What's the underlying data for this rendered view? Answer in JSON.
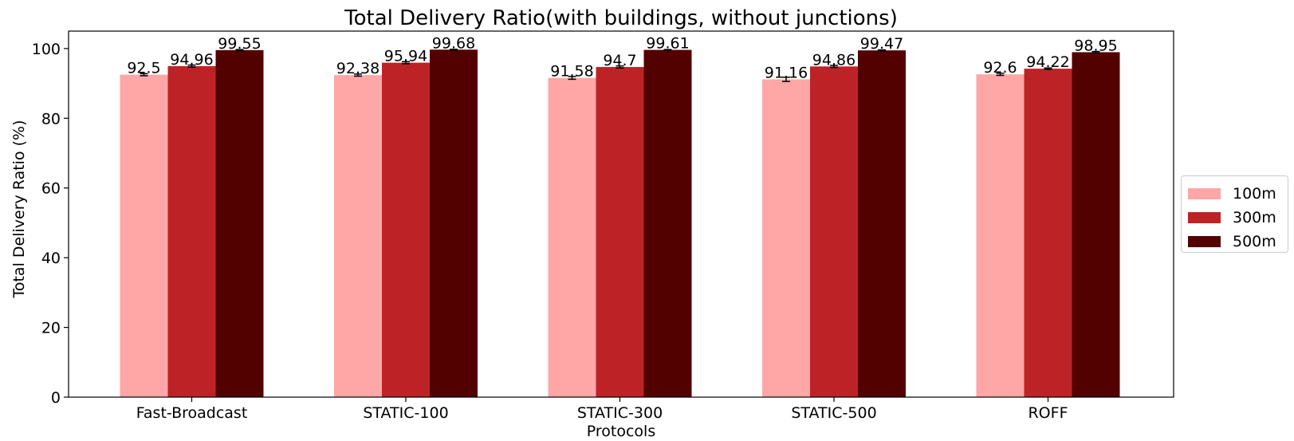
{
  "chart_data": {
    "type": "bar",
    "title": "Total Delivery Ratio(with buildings, without junctions)",
    "xlabel": "Protocols",
    "ylabel": "Total Delivery Ratio (%)",
    "ylim": [
      0,
      105
    ],
    "yticks": [
      "0",
      "20",
      "40",
      "60",
      "80",
      "100"
    ],
    "categories": [
      "Fast-Broadcast",
      "STATIC-100",
      "STATIC-300",
      "STATIC-500",
      "ROFF"
    ],
    "series": [
      {
        "name": "100m",
        "color": "#ffa6a6",
        "values": [
          92.5,
          92.38,
          91.58,
          91.16,
          92.6
        ],
        "labels": [
          "92.5",
          "92.38",
          "91.58",
          "91.16",
          "92.6"
        ],
        "errors": [
          0.3,
          0.3,
          0.4,
          0.6,
          0.3
        ]
      },
      {
        "name": "300m",
        "color": "#bd2326",
        "values": [
          94.96,
          95.94,
          94.7,
          94.86,
          94.22
        ],
        "labels": [
          "94.96",
          "95.94",
          "94.7",
          "94.86",
          "94.22"
        ],
        "errors": [
          0.3,
          0.3,
          0.3,
          0.3,
          0.2
        ]
      },
      {
        "name": "500m",
        "color": "#520000",
        "values": [
          99.55,
          99.68,
          99.61,
          99.47,
          98.95
        ],
        "labels": [
          "99.55",
          "99.68",
          "99.61",
          "99.47",
          "98.95"
        ],
        "errors": [
          0.15,
          0.1,
          0.1,
          0.15,
          0.2
        ]
      }
    ],
    "legend_position": "right",
    "grid": false
  }
}
